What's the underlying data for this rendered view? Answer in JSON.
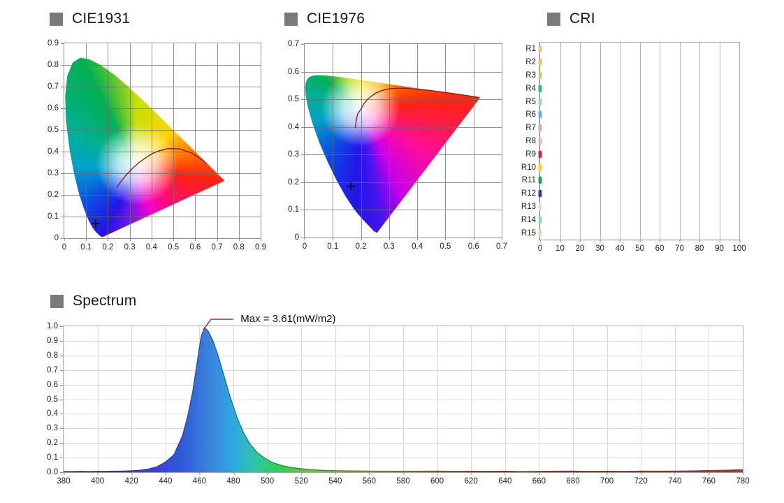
{
  "panels": {
    "cie1931": {
      "title": "CIE1931"
    },
    "cie1976": {
      "title": "CIE1976"
    },
    "cri": {
      "title": "CRI"
    },
    "spectrum": {
      "title": "Spectrum",
      "max_annotation": "Max = 3.61(mW/m2)"
    }
  },
  "colors": {
    "title_bullet": "#7a7a7a",
    "locus_line": "#8e1f1f",
    "annotation_line": "#a6262b",
    "marker": "#111111"
  },
  "chart_data": [
    {
      "id": "cie1931",
      "type": "scatter",
      "title": "CIE1931",
      "xlim": [
        0,
        0.9
      ],
      "ylim": [
        0,
        0.9
      ],
      "x_ticks": [
        "0",
        "0.1",
        "0.2",
        "0.3",
        "0.4",
        "0.5",
        "0.6",
        "0.7",
        "0.8",
        "0.9"
      ],
      "y_ticks": [
        "0.9",
        "0.8",
        "0.7",
        "0.6",
        "0.5",
        "0.4",
        "0.3",
        "0.2",
        "0.1",
        "0"
      ],
      "grid": true,
      "measured_point": {
        "x": 0.144,
        "y": 0.068
      },
      "planckian_locus": [
        [
          0.24,
          0.234
        ],
        [
          0.2565,
          0.2577
        ],
        [
          0.2807,
          0.2884
        ],
        [
          0.3135,
          0.3237
        ],
        [
          0.3451,
          0.3516
        ],
        [
          0.3805,
          0.3768
        ],
        [
          0.41,
          0.394
        ],
        [
          0.4369,
          0.4041
        ],
        [
          0.477,
          0.4137
        ],
        [
          0.527,
          0.413
        ],
        [
          0.585,
          0.393
        ],
        [
          0.625,
          0.367
        ],
        [
          0.653,
          0.344
        ]
      ],
      "spectral_locus_gamut": [
        [
          0.1741,
          0.005
        ],
        [
          0.1689,
          0.0069
        ],
        [
          0.1644,
          0.0109
        ],
        [
          0.1566,
          0.0177
        ],
        [
          0.151,
          0.0227
        ],
        [
          0.144,
          0.0297
        ],
        [
          0.1355,
          0.0399
        ],
        [
          0.1241,
          0.0578
        ],
        [
          0.1096,
          0.0868
        ],
        [
          0.0913,
          0.1327
        ],
        [
          0.0687,
          0.2007
        ],
        [
          0.0454,
          0.295
        ],
        [
          0.0235,
          0.4127
        ],
        [
          0.0082,
          0.5384
        ],
        [
          0.0039,
          0.6548
        ],
        [
          0.0139,
          0.7502
        ],
        [
          0.0389,
          0.812
        ],
        [
          0.0743,
          0.8338
        ],
        [
          0.1142,
          0.8262
        ],
        [
          0.1547,
          0.8059
        ],
        [
          0.1929,
          0.7816
        ],
        [
          0.2296,
          0.7543
        ],
        [
          0.2658,
          0.7243
        ],
        [
          0.3016,
          0.6923
        ],
        [
          0.3373,
          0.6589
        ],
        [
          0.3731,
          0.6245
        ],
        [
          0.4087,
          0.5896
        ],
        [
          0.4441,
          0.5547
        ],
        [
          0.4788,
          0.5202
        ],
        [
          0.5125,
          0.4866
        ],
        [
          0.5448,
          0.4544
        ],
        [
          0.5752,
          0.4242
        ],
        [
          0.6029,
          0.3965
        ],
        [
          0.627,
          0.3725
        ],
        [
          0.6658,
          0.334
        ],
        [
          0.6915,
          0.3083
        ],
        [
          0.7079,
          0.292
        ],
        [
          0.726,
          0.274
        ],
        [
          0.7347,
          0.2653
        ]
      ]
    },
    {
      "id": "cie1976",
      "type": "scatter",
      "title": "CIE1976",
      "xlim": [
        0,
        0.7
      ],
      "ylim": [
        0,
        0.7
      ],
      "x_ticks": [
        "0",
        "0.1",
        "0.2",
        "0.3",
        "0.4",
        "0.5",
        "0.6",
        "0.7"
      ],
      "y_ticks": [
        "0.7",
        "0.6",
        "0.5",
        "0.4",
        "0.3",
        "0.2",
        "0.1",
        "0"
      ],
      "grid": true,
      "measured_point": {
        "x": 0.164,
        "y": 0.185
      },
      "planckian_locus": [
        [
          0.18,
          0.3954
        ],
        [
          0.1832,
          0.4236
        ],
        [
          0.1884,
          0.447
        ],
        [
          0.2004,
          0.4656
        ],
        [
          0.211,
          0.485
        ],
        [
          0.2251,
          0.5016
        ],
        [
          0.2505,
          0.5214
        ],
        [
          0.2722,
          0.5311
        ],
        [
          0.3054,
          0.5386
        ],
        [
          0.3575,
          0.5403
        ],
        [
          0.4487,
          0.5318
        ],
        [
          0.52,
          0.522
        ],
        [
          0.58,
          0.513
        ],
        [
          0.62,
          0.5065
        ]
      ],
      "spectral_locus_gamut": [
        [
          0.2569,
          0.0166
        ],
        [
          0.2461,
          0.0226
        ],
        [
          0.2347,
          0.035
        ],
        [
          0.2161,
          0.0549
        ],
        [
          0.2033,
          0.0688
        ],
        [
          0.1877,
          0.0871
        ],
        [
          0.169,
          0.112
        ],
        [
          0.1441,
          0.151
        ],
        [
          0.1147,
          0.2044
        ],
        [
          0.0828,
          0.2708
        ],
        [
          0.0521,
          0.3427
        ],
        [
          0.0282,
          0.4117
        ],
        [
          0.0119,
          0.4698
        ],
        [
          0.0035,
          0.5131
        ],
        [
          0.0014,
          0.5432
        ],
        [
          0.0046,
          0.5639
        ],
        [
          0.0123,
          0.577
        ],
        [
          0.0231,
          0.5837
        ],
        [
          0.036,
          0.5862
        ],
        [
          0.0501,
          0.5868
        ],
        [
          0.0643,
          0.5866
        ],
        [
          0.0792,
          0.5857
        ],
        [
          0.0953,
          0.5841
        ],
        [
          0.1127,
          0.5821
        ],
        [
          0.1319,
          0.5796
        ],
        [
          0.1531,
          0.5766
        ],
        [
          0.1766,
          0.5732
        ],
        [
          0.2026,
          0.5694
        ],
        [
          0.2312,
          0.5651
        ],
        [
          0.2623,
          0.5604
        ],
        [
          0.296,
          0.5554
        ],
        [
          0.3315,
          0.5501
        ],
        [
          0.3681,
          0.5446
        ],
        [
          0.4035,
          0.5393
        ],
        [
          0.4692,
          0.5296
        ],
        [
          0.5202,
          0.5219
        ],
        [
          0.5565,
          0.5165
        ],
        [
          0.6005,
          0.5099
        ],
        [
          0.6234,
          0.5065
        ]
      ]
    },
    {
      "id": "cri",
      "type": "bar",
      "title": "CRI",
      "categories": [
        "R1",
        "R2",
        "R3",
        "R4",
        "R5",
        "R6",
        "R7",
        "R8",
        "R9",
        "R10",
        "R11",
        "R12",
        "R13",
        "R14",
        "R15"
      ],
      "values": [
        0,
        0,
        0,
        0,
        0,
        0,
        0,
        0,
        0,
        0,
        0,
        0,
        0,
        0,
        0
      ],
      "xlim": [
        0,
        100
      ],
      "x_ticks": [
        "0",
        "10",
        "20",
        "30",
        "40",
        "50",
        "60",
        "70",
        "80",
        "90",
        "100"
      ],
      "swatch_colors": [
        "#e9c39b",
        "#d9c77f",
        "#c9cf86",
        "#31bf80",
        "#9ed4cf",
        "#66aede",
        "#c9a9dc",
        "#e5b4ce",
        "#d6224a",
        "#f4d72e",
        "#17a85f",
        "#2f3fa0",
        "#e9ddd4",
        "#8fd8cc",
        "#eed4ba"
      ]
    },
    {
      "id": "spectrum",
      "type": "area",
      "title": "Spectrum",
      "xlim": [
        380,
        780
      ],
      "ylim": [
        0,
        1.0
      ],
      "x_ticks": [
        "380",
        "400",
        "420",
        "440",
        "460",
        "480",
        "500",
        "520",
        "540",
        "560",
        "580",
        "600",
        "620",
        "640",
        "660",
        "680",
        "700",
        "720",
        "740",
        "760",
        "780"
      ],
      "y_ticks": [
        "1.0",
        "0.9",
        "0.8",
        "0.7",
        "0.6",
        "0.5",
        "0.4",
        "0.3",
        "0.2",
        "0.1",
        "0.0"
      ],
      "grid": true,
      "max_value": 3.61,
      "max_unit": "mW/m2",
      "peak_nm": 463,
      "points": [
        [
          380,
          0.005
        ],
        [
          385,
          0.005
        ],
        [
          390,
          0.006
        ],
        [
          395,
          0.005
        ],
        [
          400,
          0.006
        ],
        [
          405,
          0.006
        ],
        [
          410,
          0.007
        ],
        [
          415,
          0.008
        ],
        [
          420,
          0.01
        ],
        [
          425,
          0.014
        ],
        [
          430,
          0.022
        ],
        [
          435,
          0.038
        ],
        [
          440,
          0.07
        ],
        [
          445,
          0.12
        ],
        [
          450,
          0.25
        ],
        [
          453,
          0.38
        ],
        [
          456,
          0.55
        ],
        [
          459,
          0.78
        ],
        [
          461,
          0.93
        ],
        [
          463,
          0.99
        ],
        [
          465,
          0.97
        ],
        [
          468,
          0.9
        ],
        [
          471,
          0.8
        ],
        [
          474,
          0.68
        ],
        [
          478,
          0.52
        ],
        [
          482,
          0.38
        ],
        [
          486,
          0.27
        ],
        [
          490,
          0.19
        ],
        [
          494,
          0.135
        ],
        [
          498,
          0.1
        ],
        [
          502,
          0.073
        ],
        [
          506,
          0.055
        ],
        [
          510,
          0.042
        ],
        [
          515,
          0.031
        ],
        [
          520,
          0.024
        ],
        [
          525,
          0.019
        ],
        [
          530,
          0.015
        ],
        [
          535,
          0.012
        ],
        [
          540,
          0.011
        ],
        [
          550,
          0.009
        ],
        [
          560,
          0.008
        ],
        [
          570,
          0.007
        ],
        [
          580,
          0.007
        ],
        [
          590,
          0.007
        ],
        [
          600,
          0.008
        ],
        [
          610,
          0.006
        ],
        [
          620,
          0.007
        ],
        [
          630,
          0.006
        ],
        [
          640,
          0.007
        ],
        [
          650,
          0.005
        ],
        [
          660,
          0.006
        ],
        [
          670,
          0.007
        ],
        [
          680,
          0.008
        ],
        [
          690,
          0.006
        ],
        [
          700,
          0.007
        ],
        [
          710,
          0.006
        ],
        [
          720,
          0.008
        ],
        [
          730,
          0.007
        ],
        [
          740,
          0.008
        ],
        [
          750,
          0.009
        ],
        [
          760,
          0.012
        ],
        [
          770,
          0.014
        ],
        [
          780,
          0.018
        ]
      ],
      "fill_stops": [
        [
          0,
          "#5b2fbf"
        ],
        [
          13,
          "#3d3ed6"
        ],
        [
          17.5,
          "#2f5ad9"
        ],
        [
          21,
          "#3a7fdd"
        ],
        [
          25,
          "#2fa7e2"
        ],
        [
          28.5,
          "#2cc9a0"
        ],
        [
          31.5,
          "#35cd52"
        ],
        [
          36,
          "#5fc93a"
        ],
        [
          41,
          "#84bc32"
        ],
        [
          48,
          "#9a9a32"
        ],
        [
          55,
          "#8f6b2e"
        ],
        [
          62,
          "#8f4a2e"
        ],
        [
          72,
          "#8f3a30"
        ],
        [
          100,
          "#a03a34"
        ]
      ],
      "stroke_stops": [
        [
          0,
          "#37246e"
        ],
        [
          15,
          "#28348c"
        ],
        [
          21,
          "#274f8e"
        ],
        [
          26,
          "#1f6e86"
        ],
        [
          30,
          "#1f7a50"
        ],
        [
          36,
          "#3d7a2a"
        ],
        [
          46,
          "#6a6a2c"
        ],
        [
          56,
          "#6e4a28"
        ],
        [
          66,
          "#6e3428"
        ],
        [
          100,
          "#8e3430"
        ]
      ]
    }
  ]
}
